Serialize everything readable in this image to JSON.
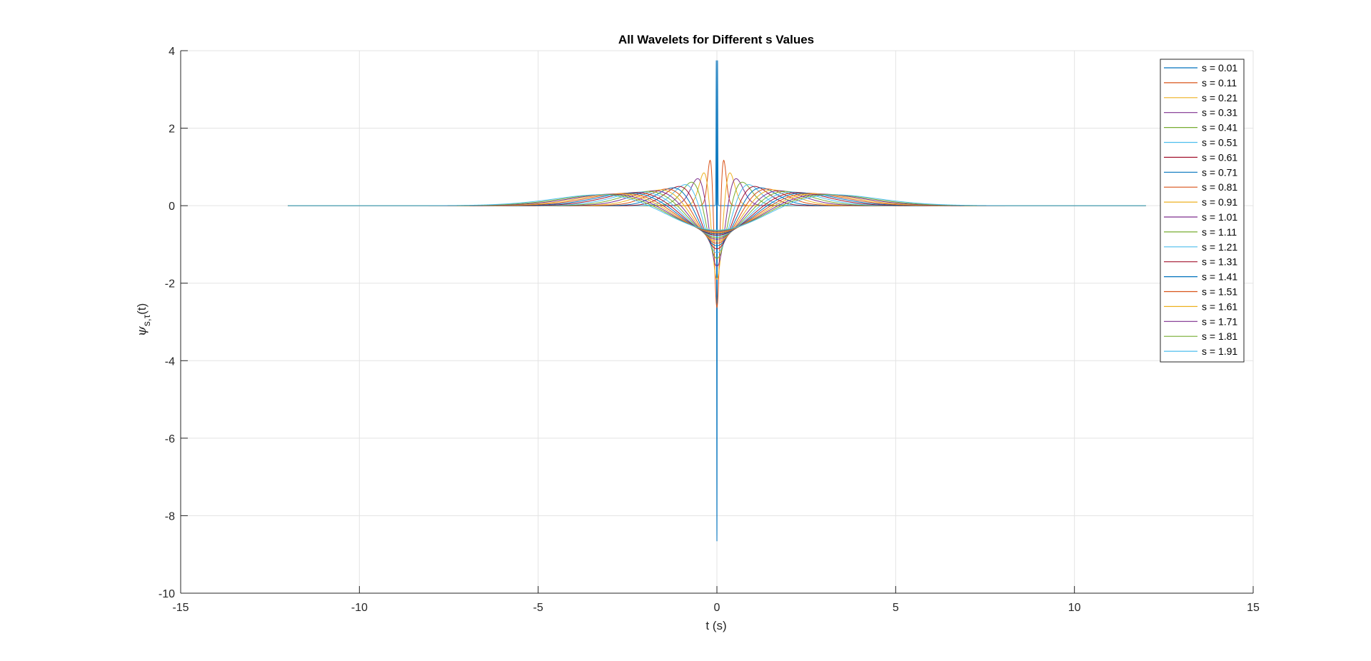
{
  "chart_data": {
    "type": "line",
    "title": "All Wavelets for Different s Values",
    "xlabel": "t (s)",
    "ylabel": {
      "symbol": "ψ",
      "subscript": "s,τ",
      "suffix": "(t)"
    },
    "xlim": [
      -15,
      15
    ],
    "ylim": [
      -10,
      4
    ],
    "xticks": [
      -15,
      -10,
      -5,
      0,
      5,
      10,
      15
    ],
    "yticks": [
      -10,
      -8,
      -6,
      -4,
      -2,
      0,
      2,
      4
    ],
    "grid": true,
    "legend_position": "top-right",
    "t_range": [
      -12,
      12
    ],
    "series": [
      {
        "name": "s = 0.01",
        "s": 0.01,
        "color": "#0072BD"
      },
      {
        "name": "s = 0.11",
        "s": 0.11,
        "color": "#D95319"
      },
      {
        "name": "s = 0.21",
        "s": 0.21,
        "color": "#EDB120"
      },
      {
        "name": "s = 0.31",
        "s": 0.31,
        "color": "#7E2F8E"
      },
      {
        "name": "s = 0.41",
        "s": 0.41,
        "color": "#77AC30"
      },
      {
        "name": "s = 0.51",
        "s": 0.51,
        "color": "#4DBEEE"
      },
      {
        "name": "s = 0.61",
        "s": 0.61,
        "color": "#A2142F"
      },
      {
        "name": "s = 0.71",
        "s": 0.71,
        "color": "#0072BD"
      },
      {
        "name": "s = 0.81",
        "s": 0.81,
        "color": "#D95319"
      },
      {
        "name": "s = 0.91",
        "s": 0.91,
        "color": "#EDB120"
      },
      {
        "name": "s = 1.01",
        "s": 1.01,
        "color": "#7E2F8E"
      },
      {
        "name": "s = 1.11",
        "s": 1.11,
        "color": "#77AC30"
      },
      {
        "name": "s = 1.21",
        "s": 1.21,
        "color": "#4DBEEE"
      },
      {
        "name": "s = 1.31",
        "s": 1.31,
        "color": "#A2142F"
      },
      {
        "name": "s = 1.41",
        "s": 1.41,
        "color": "#0072BD"
      },
      {
        "name": "s = 1.51",
        "s": 1.51,
        "color": "#D95319"
      },
      {
        "name": "s = 1.61",
        "s": 1.61,
        "color": "#EDB120"
      },
      {
        "name": "s = 1.71",
        "s": 1.71,
        "color": "#7E2F8E"
      },
      {
        "name": "s = 1.81",
        "s": 1.81,
        "color": "#77AC30"
      },
      {
        "name": "s = 1.91",
        "s": 1.91,
        "color": "#4DBEEE"
      }
    ]
  }
}
